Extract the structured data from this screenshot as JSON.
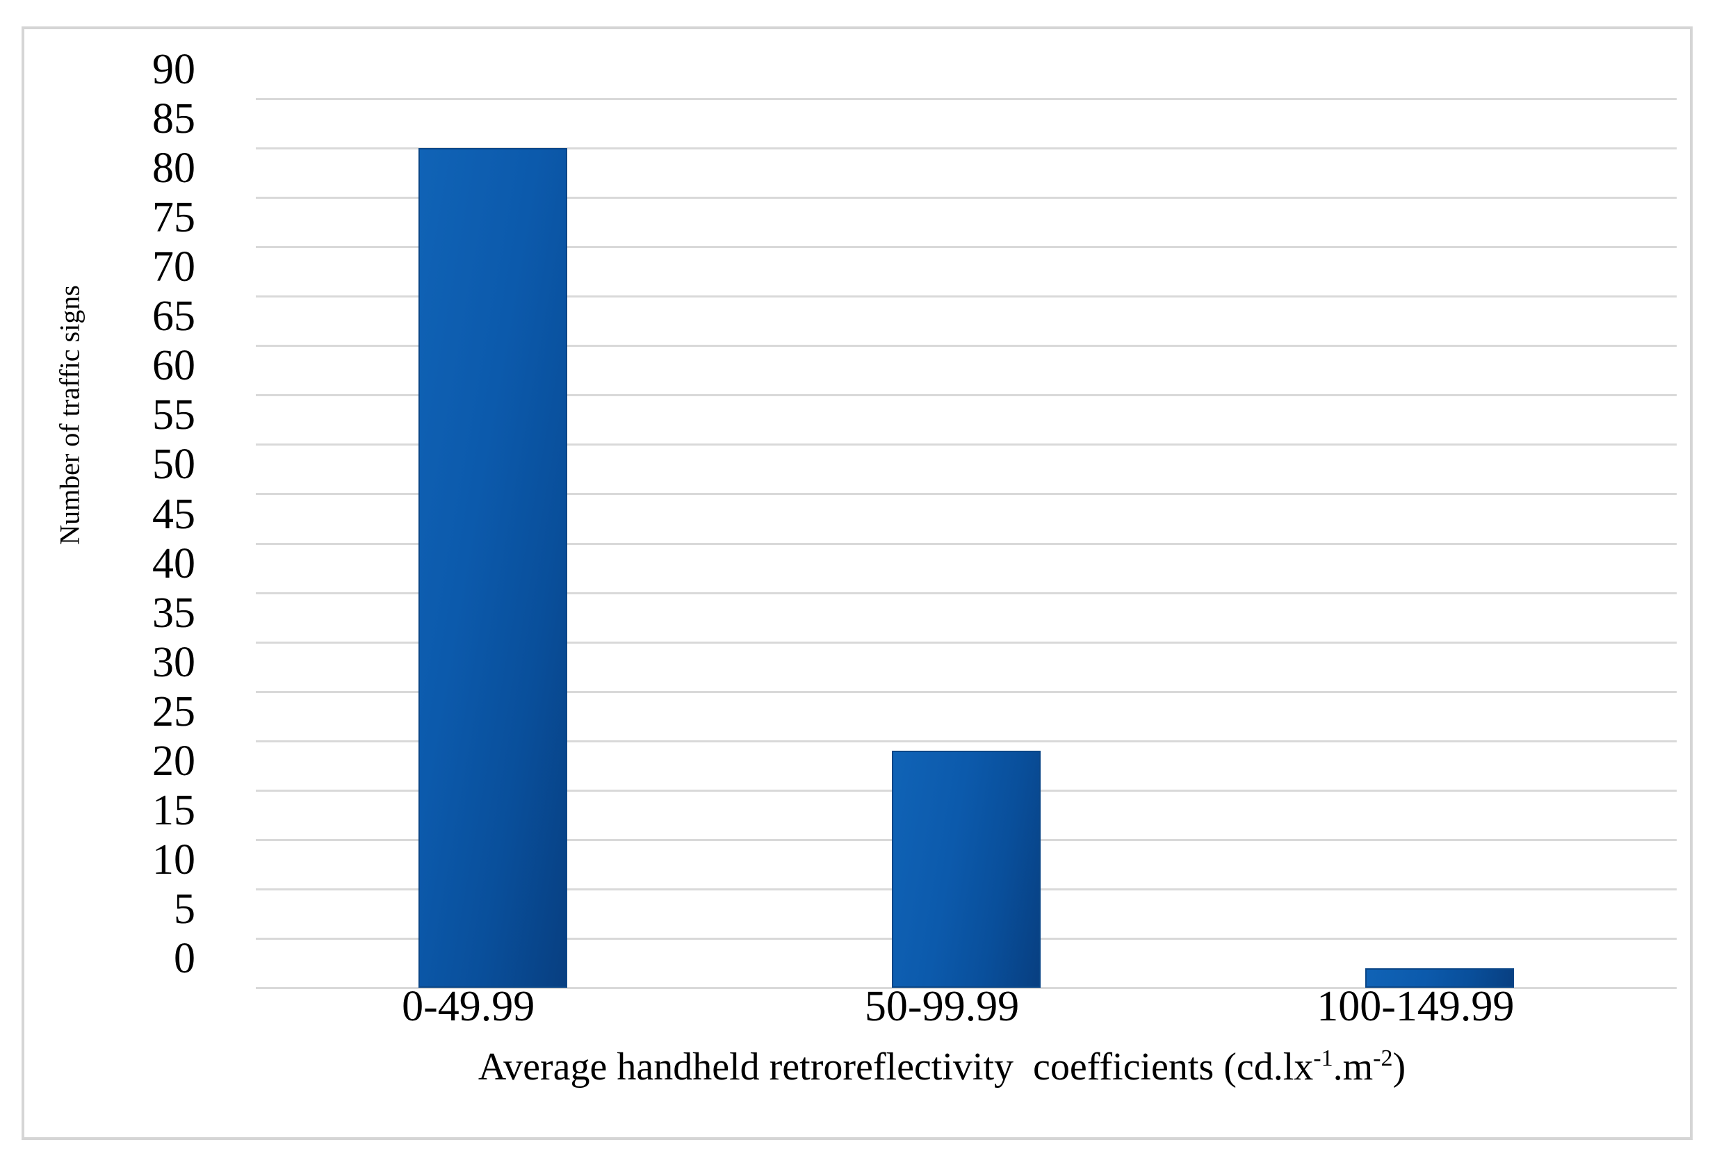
{
  "chart_data": {
    "type": "bar",
    "title": "",
    "categories": [
      "0-49.99",
      "50-99.99",
      "100-149.99"
    ],
    "values": [
      85,
      24,
      2
    ],
    "series": [
      {
        "name": "Number of traffic signs",
        "values": [
          85,
          24,
          2
        ]
      }
    ],
    "xlabel": "Average handheld retroreflectivity coefficients (cd.lx⁻¹.m⁻²)",
    "xlabel_parts": {
      "prefix": "Average handheld retroreflectivity  coefficients (cd.lx",
      "sup1": "-1",
      "mid": ".m",
      "sup2": "-2",
      "suffix": ")"
    },
    "ylabel": "Number of traffic signs",
    "ylim": [
      0,
      90
    ],
    "ytick_step": 5,
    "yticks": [
      0,
      5,
      10,
      15,
      20,
      25,
      30,
      35,
      40,
      45,
      50,
      55,
      60,
      65,
      70,
      75,
      80,
      85,
      90
    ],
    "grid": "horizontal",
    "legend_position": "none",
    "colors": {
      "bar_gradient_start": "#1063b6",
      "bar_gradient_end": "#083f81",
      "bar_border": "#0a4687",
      "gridline": "#d9d9d9",
      "frame_border": "#d5d5d5",
      "text": "#000000",
      "background": "#ffffff"
    }
  }
}
